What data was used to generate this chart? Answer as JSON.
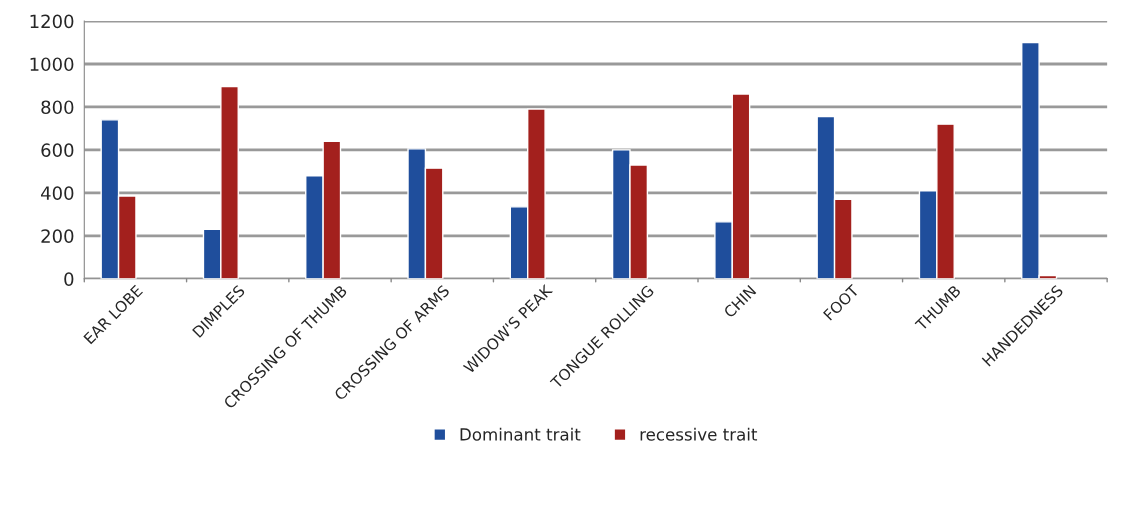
{
  "chart_data": {
    "type": "bar",
    "categories": [
      "EAR LOBE",
      "DIMPLES",
      "CROSSING OF THUMB",
      "CROSSING OF ARMS",
      "WIDOW'S PEAK",
      "TONGUE ROLLING",
      "CHIN",
      "FOOT",
      "THUMB",
      "HANDEDNESS"
    ],
    "series": [
      {
        "name": "Dominant trait",
        "color": "#1f4e9c",
        "values": [
          740,
          230,
          480,
          605,
          335,
          600,
          265,
          755,
          410,
          1100
        ]
      },
      {
        "name": "recessive trait",
        "color": "#a3201d",
        "values": [
          385,
          895,
          640,
          515,
          790,
          530,
          860,
          370,
          720,
          15
        ]
      }
    ],
    "ylim": [
      0,
      1200
    ],
    "yticks": [
      0,
      200,
      400,
      600,
      800,
      1000,
      1200
    ],
    "grid": "y",
    "legend": "bottom"
  }
}
